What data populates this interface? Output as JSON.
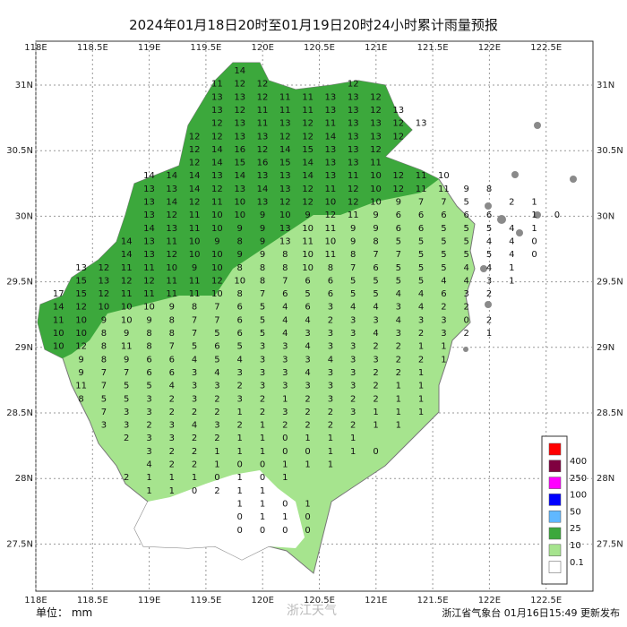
{
  "header": {
    "title": "2024年01月18日20时至01月19日20时24小时累计雨量预报"
  },
  "axes": {
    "lon_labels": [
      "118E",
      "118.5E",
      "119E",
      "119.5E",
      "120E",
      "120.5E",
      "121E",
      "121.5E",
      "122E",
      "122.5E"
    ],
    "lat_labels": [
      "31N",
      "30.5N",
      "30N",
      "29.5N",
      "29N",
      "28.5N",
      "28N",
      "27.5N"
    ]
  },
  "grid_values": [
    [
      null,
      null,
      null,
      null,
      null,
      null,
      null,
      null,
      14
    ],
    [
      null,
      null,
      null,
      null,
      null,
      null,
      null,
      11,
      12,
      12,
      null,
      null,
      null,
      12
    ],
    [
      null,
      null,
      null,
      null,
      null,
      null,
      null,
      13,
      13,
      12,
      11,
      11,
      13,
      13,
      12
    ],
    [
      null,
      null,
      null,
      null,
      null,
      null,
      null,
      13,
      12,
      11,
      11,
      11,
      13,
      13,
      12,
      13
    ],
    [
      null,
      null,
      null,
      null,
      null,
      null,
      null,
      12,
      13,
      11,
      13,
      12,
      11,
      13,
      13,
      12,
      13
    ],
    [
      null,
      null,
      null,
      null,
      null,
      null,
      12,
      12,
      13,
      13,
      12,
      12,
      14,
      13,
      13,
      12
    ],
    [
      null,
      null,
      null,
      null,
      null,
      null,
      12,
      14,
      16,
      12,
      14,
      15,
      13,
      13,
      12
    ],
    [
      null,
      null,
      null,
      null,
      null,
      null,
      12,
      14,
      15,
      16,
      15,
      14,
      13,
      13,
      11
    ],
    [
      null,
      null,
      null,
      null,
      14,
      14,
      14,
      13,
      14,
      13,
      13,
      14,
      13,
      11,
      10,
      12,
      11,
      10
    ],
    [
      null,
      null,
      null,
      null,
      13,
      13,
      14,
      12,
      13,
      14,
      13,
      12,
      11,
      12,
      10,
      12,
      11,
      11,
      9,
      8
    ],
    [
      null,
      null,
      null,
      null,
      13,
      14,
      12,
      11,
      10,
      13,
      12,
      12,
      10,
      12,
      10,
      9,
      7,
      7,
      5,
      null,
      2,
      1
    ],
    [
      null,
      null,
      null,
      null,
      13,
      12,
      11,
      10,
      10,
      9,
      10,
      9,
      12,
      11,
      9,
      6,
      6,
      6,
      6,
      6,
      null,
      1,
      0
    ],
    [
      null,
      null,
      null,
      null,
      14,
      13,
      11,
      10,
      9,
      9,
      13,
      10,
      11,
      9,
      9,
      6,
      6,
      5,
      5,
      5,
      4,
      1
    ],
    [
      null,
      null,
      null,
      14,
      13,
      11,
      10,
      9,
      8,
      9,
      13,
      11,
      10,
      9,
      8,
      5,
      5,
      5,
      5,
      4,
      4,
      0
    ],
    [
      null,
      null,
      null,
      14,
      13,
      12,
      10,
      10,
      9,
      9,
      8,
      10,
      11,
      8,
      7,
      7,
      5,
      5,
      5,
      5,
      4,
      0
    ],
    [
      null,
      13,
      12,
      11,
      11,
      10,
      9,
      10,
      8,
      8,
      8,
      10,
      8,
      7,
      6,
      5,
      5,
      5,
      4,
      4,
      1
    ],
    [
      null,
      15,
      13,
      12,
      12,
      11,
      11,
      12,
      10,
      8,
      7,
      6,
      6,
      5,
      5,
      5,
      5,
      4,
      4,
      3,
      1
    ],
    [
      17,
      15,
      12,
      11,
      11,
      11,
      11,
      10,
      8,
      7,
      6,
      5,
      6,
      5,
      5,
      4,
      4,
      6,
      3,
      2
    ],
    [
      14,
      12,
      10,
      10,
      10,
      9,
      8,
      7,
      6,
      5,
      4,
      6,
      3,
      4,
      4,
      3,
      4,
      2,
      2
    ],
    [
      11,
      10,
      9,
      10,
      9,
      8,
      7,
      7,
      6,
      5,
      4,
      4,
      2,
      3,
      3,
      4,
      3,
      3,
      0,
      2
    ],
    [
      10,
      10,
      8,
      9,
      8,
      8,
      7,
      5,
      6,
      5,
      4,
      3,
      3,
      3,
      4,
      3,
      2,
      3,
      2,
      1
    ],
    [
      10,
      12,
      8,
      11,
      8,
      7,
      5,
      6,
      5,
      3,
      3,
      4,
      3,
      3,
      2,
      2,
      1,
      1
    ],
    [
      null,
      9,
      8,
      9,
      6,
      6,
      4,
      5,
      4,
      3,
      3,
      3,
      4,
      3,
      3,
      2,
      2,
      1
    ],
    [
      null,
      9,
      7,
      7,
      6,
      6,
      3,
      4,
      3,
      3,
      3,
      4,
      3,
      3,
      2,
      2,
      1
    ],
    [
      null,
      11,
      7,
      5,
      5,
      4,
      3,
      3,
      2,
      3,
      3,
      3,
      3,
      3,
      2,
      1,
      1
    ],
    [
      null,
      8,
      5,
      5,
      3,
      2,
      3,
      2,
      3,
      2,
      1,
      2,
      3,
      2,
      2,
      1,
      1
    ],
    [
      null,
      null,
      7,
      3,
      3,
      2,
      2,
      2,
      1,
      2,
      3,
      2,
      2,
      3,
      1,
      1,
      1
    ],
    [
      null,
      null,
      3,
      3,
      2,
      3,
      4,
      3,
      2,
      1,
      2,
      2,
      2,
      2,
      1,
      1
    ],
    [
      null,
      null,
      null,
      2,
      3,
      3,
      2,
      2,
      1,
      1,
      0,
      1,
      1,
      1
    ],
    [
      null,
      null,
      null,
      null,
      3,
      2,
      2,
      1,
      1,
      1,
      0,
      0,
      1,
      1,
      0
    ],
    [
      null,
      null,
      null,
      null,
      4,
      2,
      2,
      1,
      0,
      0,
      1,
      1,
      1
    ],
    [
      null,
      null,
      null,
      2,
      1,
      1,
      1,
      0,
      1,
      0,
      1
    ],
    [
      null,
      null,
      null,
      null,
      1,
      1,
      0,
      2,
      1,
      1
    ],
    [
      null,
      null,
      null,
      null,
      null,
      null,
      null,
      null,
      1,
      1,
      0,
      1
    ],
    [
      null,
      null,
      null,
      null,
      null,
      null,
      null,
      null,
      0,
      1,
      1,
      0
    ],
    [
      null,
      null,
      null,
      null,
      null,
      null,
      null,
      null,
      0,
      0,
      0,
      0
    ]
  ],
  "legend": [
    {
      "label": "400",
      "color": "#ff0000"
    },
    {
      "label": "250",
      "color": "#800040"
    },
    {
      "label": "100",
      "color": "#ff00ff"
    },
    {
      "label": "50",
      "color": "#0000ff"
    },
    {
      "label": "25",
      "color": "#60b8ff"
    },
    {
      "label": "10",
      "color": "#3ca83c"
    },
    {
      "label": "0.1",
      "color": "#a6e48e"
    },
    {
      "label": "",
      "color": "#ffffff"
    }
  ],
  "footer": {
    "unit": "单位： mm",
    "watermark": "浙江天气",
    "issuer": "浙江省气象台 01月16日15:49 更新发布"
  }
}
